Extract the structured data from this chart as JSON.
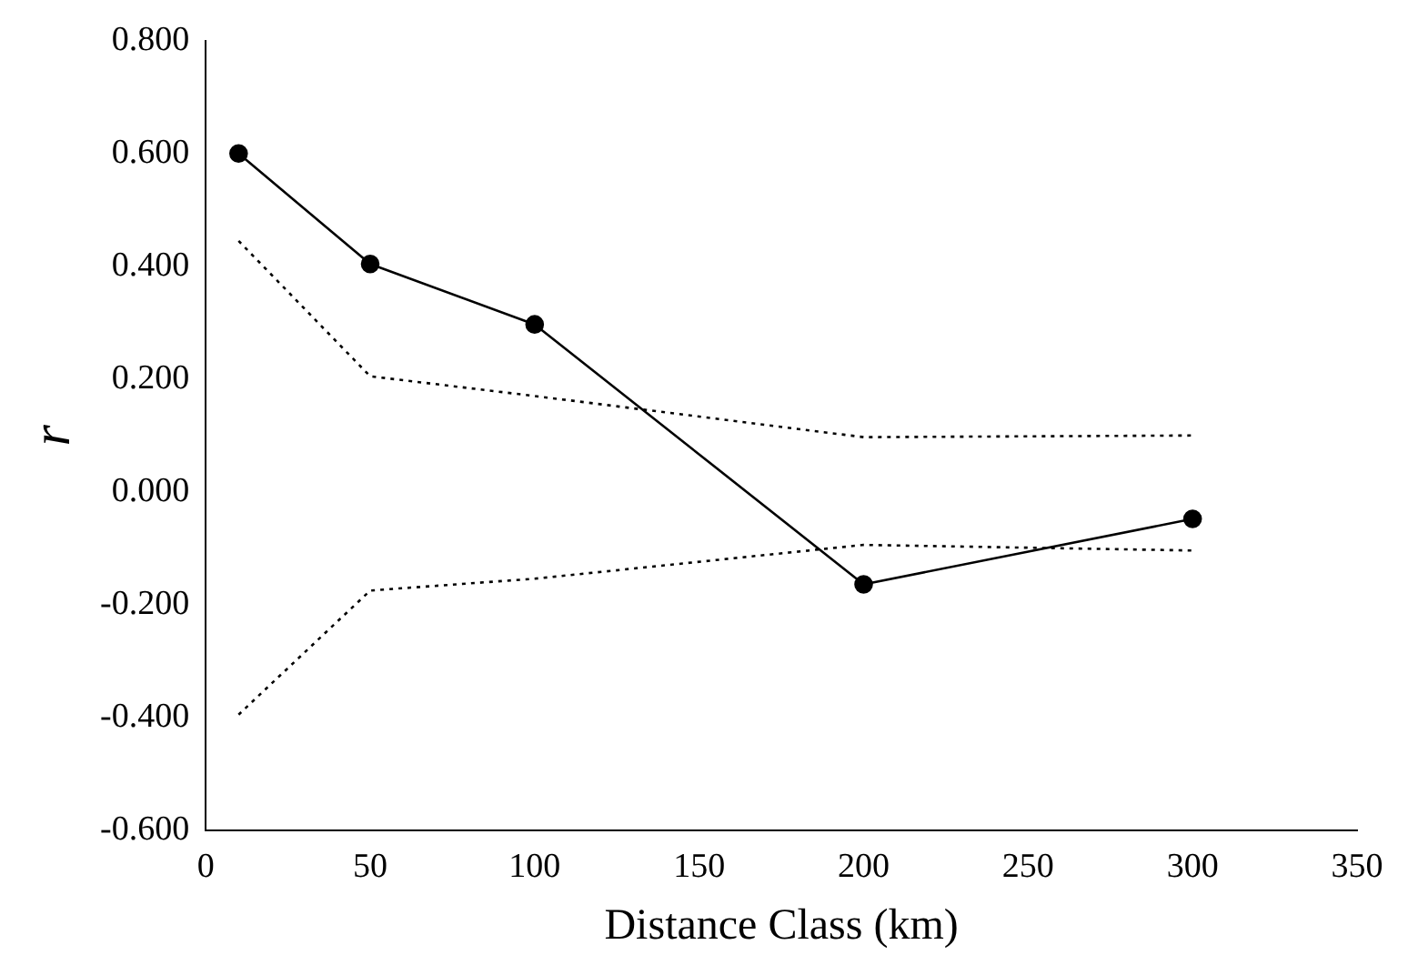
{
  "chart_data": {
    "type": "line",
    "xlabel": "Distance Class (km)",
    "ylabel": "r",
    "xlim": [
      0,
      350
    ],
    "xticks": [
      0,
      50,
      100,
      150,
      200,
      250,
      300,
      350
    ],
    "ylim": [
      -0.6,
      0.8
    ],
    "yticks": [
      {
        "value": -0.6,
        "label": "-0.600"
      },
      {
        "value": -0.4,
        "label": "-0.400"
      },
      {
        "value": -0.2,
        "label": "-0.200"
      },
      {
        "value": 0,
        "label": "0.000"
      },
      {
        "value": 0.2,
        "label": "0.200"
      },
      {
        "value": 0.4,
        "label": "0.400"
      },
      {
        "value": 0.6,
        "label": "0.600"
      },
      {
        "value": 0.8,
        "label": "0.800"
      }
    ],
    "grid": false,
    "legend": false,
    "x": [
      10,
      50,
      100,
      200,
      300
    ],
    "series": [
      {
        "color": "#000000",
        "marker": "circle",
        "line_style": "solid",
        "values": [
          0.6,
          0.404,
          0.297,
          -0.164,
          -0.048
        ]
      },
      {
        "color": "#000000",
        "marker": "none",
        "line_style": "dotted",
        "values": [
          0.445,
          0.205,
          0.17,
          0.097,
          0.1
        ]
      },
      {
        "color": "#000000",
        "marker": "none",
        "line_style": "dotted",
        "values": [
          -0.395,
          -0.175,
          -0.154,
          -0.094,
          -0.104
        ]
      }
    ]
  }
}
